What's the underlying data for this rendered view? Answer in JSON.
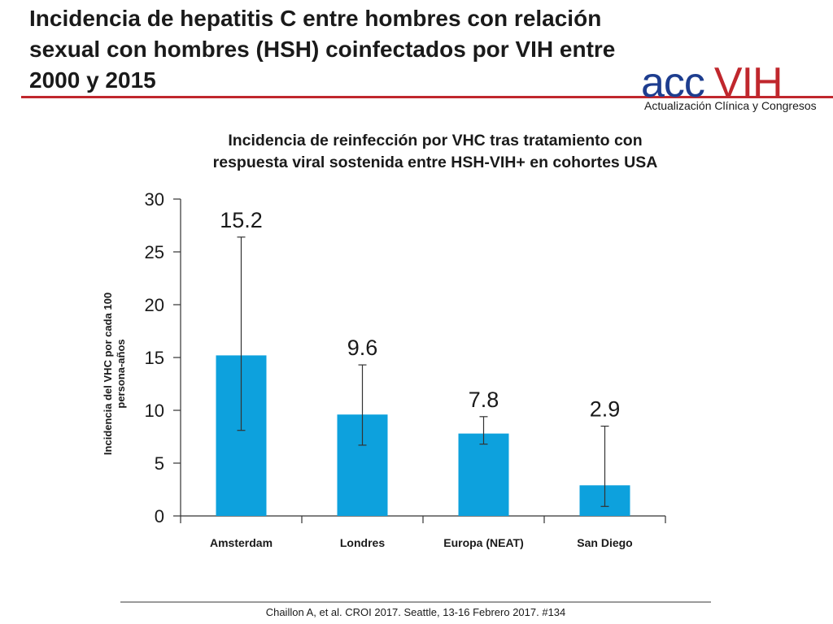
{
  "slide": {
    "title_line1": "Incidencia de hepatitis C entre hombres con relación",
    "title_line2": "sexual con hombres (HSH) coinfectados por VIH entre",
    "title_line3": "2000 y 2015"
  },
  "logo": {
    "acc": "acc",
    "vih": "VIH",
    "tagline": "Actualización Clínica y Congresos",
    "colors": {
      "acc": "#1d3d8f",
      "vih": "#c0272d"
    }
  },
  "footer": {
    "citation": "Chaillon A, et al. CROI 2017. Seattle, 13-16 Febrero 2017. #134"
  },
  "chart_data": {
    "type": "bar",
    "title_line1": "Incidencia de reinfección por VHC tras tratamiento con",
    "title_line2": "respuesta viral sostenida entre HSH-VIH+ en cohortes USA",
    "ylabel_line1": "Incidencia del VHC por cada 100",
    "ylabel_line2": "persona-años",
    "xlabel": "",
    "categories": [
      "Amsterdam",
      "Londres",
      "Europa (NEAT)",
      "San Diego"
    ],
    "values": [
      15.2,
      9.6,
      7.8,
      2.9
    ],
    "value_labels": [
      "15.2",
      "9.6",
      "7.8",
      "2.9"
    ],
    "error_low": [
      8.1,
      6.7,
      6.8,
      0.9
    ],
    "error_high": [
      26.4,
      14.3,
      9.4,
      8.5
    ],
    "ylim": [
      0,
      30
    ],
    "yticks": [
      "0",
      "5",
      "10",
      "15",
      "20",
      "25",
      "30"
    ],
    "bar_color": "#0da1dd",
    "grid": false
  }
}
